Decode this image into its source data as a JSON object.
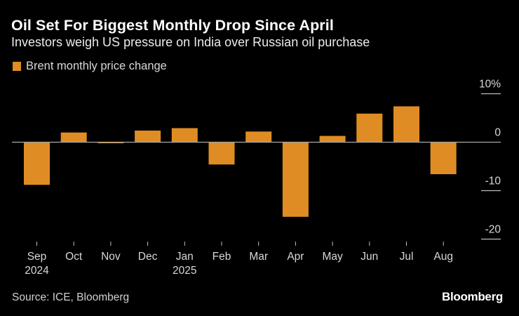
{
  "chart_data": {
    "type": "bar",
    "title": "Oil Set For Biggest Monthly Drop Since April",
    "subtitle": "Investors weigh US pressure on India over Russian oil purchase",
    "categories": [
      "Sep",
      "Oct",
      "Nov",
      "Dec",
      "Jan",
      "Feb",
      "Mar",
      "Apr",
      "May",
      "Jun",
      "Jul",
      "Aug"
    ],
    "category_sublabels": [
      "2024",
      "",
      "",
      "",
      "2025",
      "",
      "",
      "",
      "",
      "",
      "",
      ""
    ],
    "series": [
      {
        "name": "Brent monthly price change",
        "color": "#e08c25",
        "values": [
          -8.8,
          2.0,
          -0.2,
          2.4,
          2.9,
          -4.6,
          2.2,
          -15.4,
          1.3,
          5.9,
          7.4,
          -6.6
        ]
      }
    ],
    "yticks": [
      {
        "value": 10,
        "label": "10%"
      },
      {
        "value": 0,
        "label": "0"
      },
      {
        "value": -10,
        "label": "-10"
      },
      {
        "value": -20,
        "label": "-20"
      }
    ],
    "ylim": [
      -20,
      10
    ],
    "y_axis_position": "right",
    "legend_position": "top-left",
    "grid": false,
    "xlabel": "",
    "ylabel": ""
  },
  "footer": {
    "source": "Source: ICE, Bloomberg",
    "logo": "Bloomberg"
  }
}
